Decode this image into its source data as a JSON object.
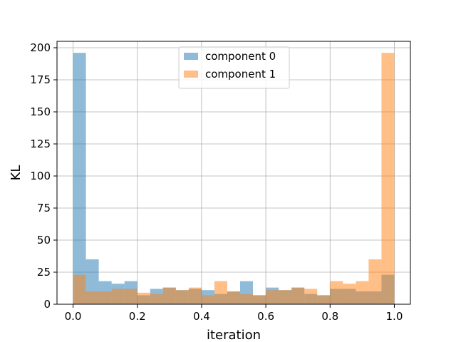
{
  "chart_data": {
    "type": "histogram",
    "title": "",
    "xlabel": "iteration",
    "ylabel": "KL",
    "xlim": [
      -0.05,
      1.05
    ],
    "ylim": [
      0,
      205
    ],
    "bin_edges": [
      0.0,
      0.04,
      0.08,
      0.12,
      0.16,
      0.2,
      0.24,
      0.28,
      0.32,
      0.36,
      0.4,
      0.44,
      0.48,
      0.52,
      0.56,
      0.6,
      0.64,
      0.68,
      0.72,
      0.76,
      0.8,
      0.84,
      0.88,
      0.92,
      0.96,
      1.0
    ],
    "x_ticks": [
      {
        "value": 0.0,
        "label": "0.0"
      },
      {
        "value": 0.2,
        "label": "0.2"
      },
      {
        "value": 0.4,
        "label": "0.4"
      },
      {
        "value": 0.6,
        "label": "0.6"
      },
      {
        "value": 0.8,
        "label": "0.8"
      },
      {
        "value": 1.0,
        "label": "1.0"
      }
    ],
    "y_ticks": [
      {
        "value": 0,
        "label": "0"
      },
      {
        "value": 25,
        "label": "25"
      },
      {
        "value": 50,
        "label": "50"
      },
      {
        "value": 75,
        "label": "75"
      },
      {
        "value": 100,
        "label": "100"
      },
      {
        "value": 125,
        "label": "125"
      },
      {
        "value": 150,
        "label": "150"
      },
      {
        "value": 175,
        "label": "175"
      },
      {
        "value": 200,
        "label": "200"
      }
    ],
    "grid": true,
    "legend_position": "top-center",
    "series": [
      {
        "name": "component 0",
        "color": "#1f77b4",
        "alpha": 0.5,
        "values": [
          196,
          35,
          18,
          16,
          18,
          7,
          12,
          13,
          11,
          12,
          11,
          8,
          10,
          18,
          7,
          13,
          11,
          13,
          8,
          7,
          12,
          12,
          10,
          10,
          23
        ]
      },
      {
        "name": "component 1",
        "color": "#ff7f0e",
        "alpha": 0.5,
        "values": [
          23,
          10,
          10,
          12,
          12,
          9,
          8,
          13,
          11,
          13,
          7,
          18,
          10,
          8,
          7,
          11,
          11,
          13,
          12,
          7,
          18,
          16,
          18,
          35,
          196
        ]
      }
    ]
  }
}
